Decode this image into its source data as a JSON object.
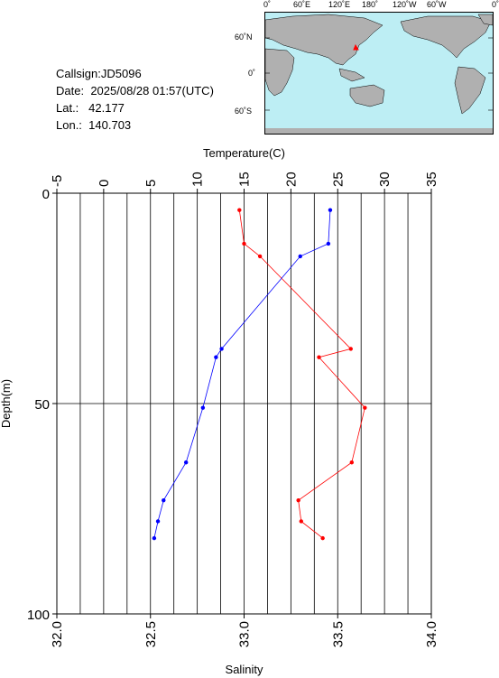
{
  "info": {
    "callsign_label": "Callsign:",
    "callsign": "JD5096",
    "date_label": "Date:",
    "date": "2025/08/28 01:57(UTC)",
    "lat_label": "Lat.:",
    "lat": "42.177",
    "lon_label": "Lon.:",
    "lon": "140.703"
  },
  "map": {
    "top_labels": [
      "0˚",
      "60˚E",
      "120˚E",
      "180˚",
      "120˚W",
      "60˚W",
      "0˚"
    ],
    "lat_labels": [
      "60˚N",
      "0˚",
      "60˚S"
    ],
    "ocean_color": "#bdeef4",
    "land_color": "#b0b0b0",
    "marker_color": "#ff0000"
  },
  "chart_data": {
    "type": "line",
    "ylabel": "Depth(m)",
    "ylim": [
      100,
      0
    ],
    "yticks": [
      "0",
      "50",
      "100"
    ],
    "x_top": {
      "label": "Temperature(C)",
      "lim": [
        -5,
        35
      ],
      "ticks": [
        "-5",
        "0",
        "5",
        "10",
        "15",
        "20",
        "25",
        "30",
        "35"
      ]
    },
    "x_bottom": {
      "label": "Salinity",
      "lim": [
        32.0,
        34.0
      ],
      "ticks": [
        "32.0",
        "32.5",
        "33.0",
        "33.5",
        "34.0"
      ]
    },
    "series": [
      {
        "axis": "temperature",
        "color": "#ff0000",
        "points": [
          {
            "x": 14.5,
            "depth": 4
          },
          {
            "x": 15.0,
            "depth": 12
          },
          {
            "x": 16.7,
            "depth": 15
          },
          {
            "x": 26.4,
            "depth": 37
          },
          {
            "x": 23.0,
            "depth": 39
          },
          {
            "x": 27.9,
            "depth": 51
          },
          {
            "x": 26.5,
            "depth": 64
          },
          {
            "x": 20.8,
            "depth": 73
          },
          {
            "x": 21.1,
            "depth": 78
          },
          {
            "x": 23.4,
            "depth": 82
          }
        ]
      },
      {
        "axis": "salinity",
        "color": "#0000ff",
        "points": [
          {
            "x": 33.46,
            "depth": 4
          },
          {
            "x": 33.45,
            "depth": 12
          },
          {
            "x": 33.3,
            "depth": 15
          },
          {
            "x": 32.88,
            "depth": 37
          },
          {
            "x": 32.85,
            "depth": 39
          },
          {
            "x": 32.78,
            "depth": 51
          },
          {
            "x": 32.69,
            "depth": 64
          },
          {
            "x": 32.57,
            "depth": 73
          },
          {
            "x": 32.54,
            "depth": 78
          },
          {
            "x": 32.52,
            "depth": 82
          }
        ]
      }
    ]
  }
}
